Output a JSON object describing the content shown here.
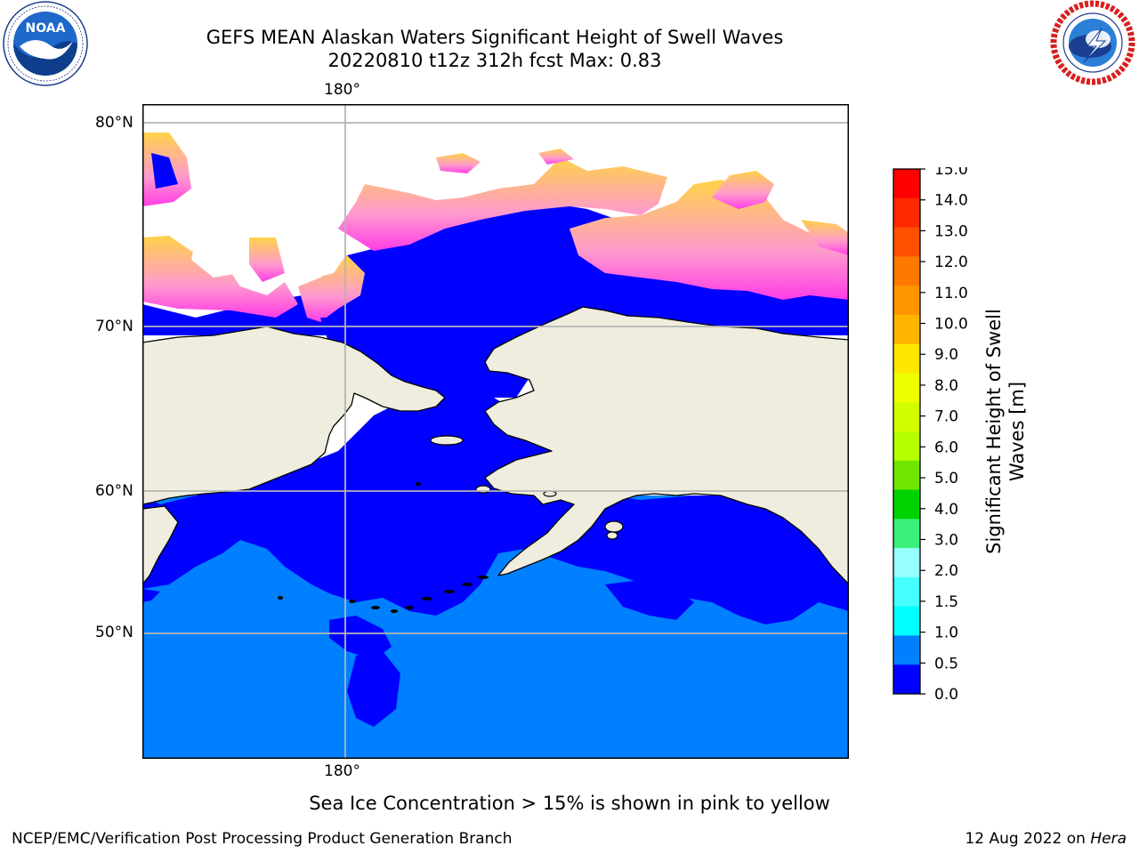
{
  "header": {
    "title_line1": "GEFS MEAN Alaskan Waters Significant Height of Swell Waves",
    "title_line2": "20220810 t12z 312h fcst   Max: 0.83"
  },
  "logos": {
    "left": {
      "text": "NOAA",
      "icon": "noaa-logo",
      "ring_text": "NATIONAL OCEANIC AND ATMOSPHERIC ADMINISTRATION · U.S. DEPARTMENT OF COMMERCE"
    },
    "right": {
      "icon": "nws-logo",
      "ring_text": "NATIONAL WEATHER SERVICE"
    }
  },
  "map": {
    "lat_labels": [
      "80°N",
      "70°N",
      "60°N",
      "50°N"
    ],
    "lon_label_top": "180°",
    "lon_label_bottom": "180°",
    "colors": {
      "ocean_low": "#0000ff",
      "ocean_mid": "#0080ff",
      "land": "#efedde",
      "coast": "#000000",
      "grid": "#b4b4b4"
    }
  },
  "colorbar": {
    "title": "Significant Height of Swell Waves [m]",
    "ticks": [
      "15.0",
      "14.0",
      "13.0",
      "12.0",
      "11.0",
      "10.0",
      "9.0",
      "8.0",
      "7.0",
      "6.0",
      "5.0",
      "4.0",
      "3.0",
      "2.0",
      "1.5",
      "1.0",
      "0.5",
      "0.0"
    ],
    "colors_top_to_bottom": [
      "#ff0000",
      "#ff2800",
      "#ff5000",
      "#ff7800",
      "#ff9600",
      "#ffb400",
      "#ffe600",
      "#f0ff00",
      "#d2ff00",
      "#b4ff00",
      "#6ee600",
      "#00d200",
      "#3cf07a",
      "#96ffff",
      "#46ffff",
      "#00ffff",
      "#0080ff",
      "#0000ff"
    ]
  },
  "footer": {
    "ice_note": "Sea Ice Concentration > 15% is shown in pink to yellow",
    "credit": "NCEP/EMC/Verification Post Processing Product Generation Branch",
    "date": "12 Aug 2022 on ",
    "machine": "Hera"
  }
}
